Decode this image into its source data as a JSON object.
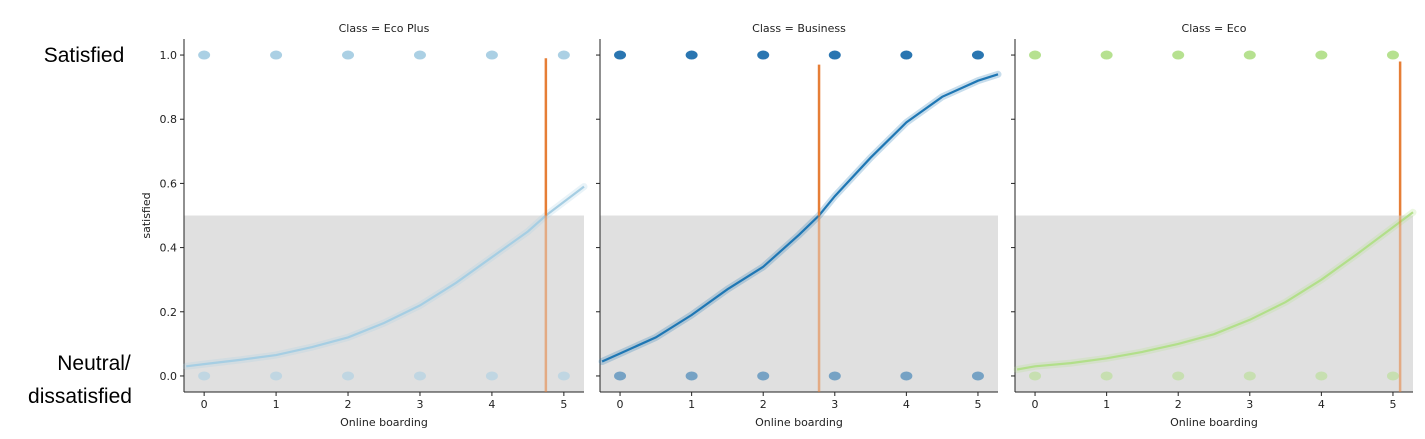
{
  "annotations": {
    "satisfied": "Satisfied",
    "dissatisfied_line1": "Neutral/",
    "dissatisfied_line2": "dissatisfied"
  },
  "chart_data": [
    {
      "type": "scatter",
      "title": "Class = Eco Plus",
      "xlabel": "Online boarding",
      "ylabel": "satisfied",
      "xlim": [
        -0.28,
        5.28
      ],
      "ylim": [
        -0.05,
        1.05
      ],
      "xticks": [
        "0",
        "1",
        "2",
        "3",
        "4",
        "5"
      ],
      "yticks": [
        "0.0",
        "0.2",
        "0.4",
        "0.6",
        "0.8",
        "1.0"
      ],
      "x": [
        0,
        1,
        2,
        3,
        4,
        5
      ],
      "points_satisfied_y": 1.0,
      "points_dissatisfied_y": 0.0,
      "point_color": "#a6cee3",
      "curve_color": "#a6cee3",
      "curve": {
        "x": [
          -0.25,
          0,
          0.5,
          1,
          1.5,
          2,
          2.5,
          3,
          3.5,
          4,
          4.5,
          4.75,
          5.28
        ],
        "y": [
          0.03,
          0.037,
          0.05,
          0.065,
          0.09,
          0.12,
          0.165,
          0.22,
          0.29,
          0.37,
          0.45,
          0.5,
          0.59
        ]
      },
      "shade_ymax": 0.5,
      "threshold_x": 4.75,
      "threshold_top": 0.99,
      "threshold_color": "#e67e36",
      "grid": false
    },
    {
      "type": "scatter",
      "title": "Class = Business",
      "xlabel": "Online boarding",
      "ylabel": "",
      "xlim": [
        -0.28,
        5.28
      ],
      "ylim": [
        -0.05,
        1.05
      ],
      "xticks": [
        "0",
        "1",
        "2",
        "3",
        "4",
        "5"
      ],
      "yticks": [],
      "x": [
        0,
        1,
        2,
        3,
        4,
        5
      ],
      "points_satisfied_y": 1.0,
      "points_dissatisfied_y": 0.0,
      "point_color": "#1f6fad",
      "curve_color": "#1f77b4",
      "curve": {
        "x": [
          -0.25,
          0,
          0.5,
          1,
          1.5,
          2,
          2.5,
          2.78,
          3,
          3.5,
          4,
          4.5,
          5,
          5.28
        ],
        "y": [
          0.045,
          0.07,
          0.12,
          0.19,
          0.27,
          0.34,
          0.44,
          0.5,
          0.56,
          0.68,
          0.79,
          0.87,
          0.92,
          0.94
        ]
      },
      "shade_ymax": 0.5,
      "threshold_x": 2.78,
      "threshold_top": 0.97,
      "threshold_color": "#e67e36",
      "grid": false
    },
    {
      "type": "scatter",
      "title": "Class = Eco",
      "xlabel": "Online boarding",
      "ylabel": "",
      "xlim": [
        -0.28,
        5.28
      ],
      "ylim": [
        -0.05,
        1.05
      ],
      "xticks": [
        "0",
        "1",
        "2",
        "3",
        "4",
        "5"
      ],
      "yticks": [],
      "x": [
        0,
        1,
        2,
        3,
        4,
        5
      ],
      "points_satisfied_y": 1.0,
      "points_dissatisfied_y": 0.0,
      "point_color": "#b2df8a",
      "curve_color": "#b2df8a",
      "curve": {
        "x": [
          -0.25,
          0,
          0.5,
          1,
          1.5,
          2,
          2.5,
          3,
          3.5,
          4,
          4.5,
          5.1,
          5.28
        ],
        "y": [
          0.02,
          0.03,
          0.04,
          0.055,
          0.075,
          0.1,
          0.13,
          0.175,
          0.23,
          0.3,
          0.38,
          0.48,
          0.51
        ]
      },
      "shade_ymax": 0.5,
      "threshold_x": 5.1,
      "threshold_top": 0.98,
      "threshold_color": "#e67e36",
      "grid": false
    }
  ]
}
